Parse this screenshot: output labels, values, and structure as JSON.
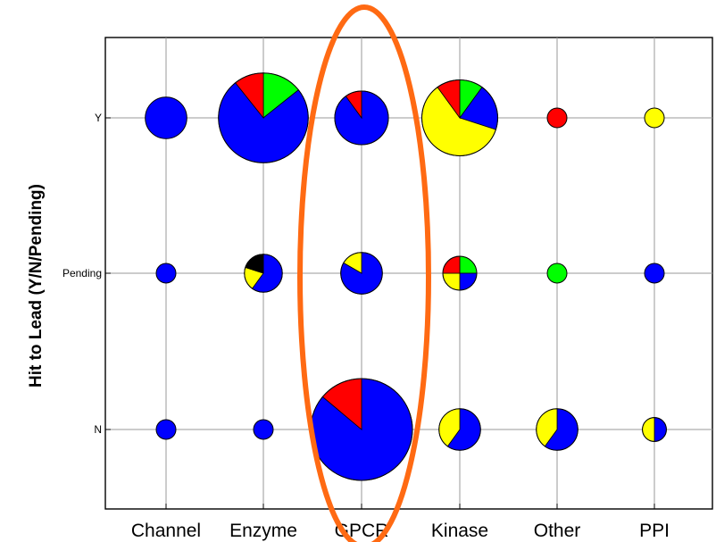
{
  "chart_data": {
    "type": "pie-grid",
    "ylabel": "Hit to Lead (Y/N/Pending)",
    "xlabel": "",
    "categories": [
      "Channel",
      "Enzyme",
      "GPCR",
      "Kinase",
      "Other",
      "PPI"
    ],
    "rows": [
      "Y",
      "Pending",
      "N"
    ],
    "grid": true,
    "series": [
      {
        "name": "blue",
        "color": "#0000ff"
      },
      {
        "name": "yellow",
        "color": "#ffff00"
      },
      {
        "name": "red",
        "color": "#ff0000"
      },
      {
        "name": "green",
        "color": "#00ff00"
      },
      {
        "name": "black",
        "color": "#000000"
      }
    ],
    "cells": [
      {
        "category": "Channel",
        "row": "Y",
        "total": 6,
        "slices": [
          {
            "color": "#0000ff",
            "value": 6
          }
        ]
      },
      {
        "category": "Enzyme",
        "row": "Y",
        "total": 28,
        "slices": [
          {
            "color": "#00ff00",
            "value": 4
          },
          {
            "color": "#0000ff",
            "value": 21
          },
          {
            "color": "#ff0000",
            "value": 3
          }
        ]
      },
      {
        "category": "GPCR",
        "row": "Y",
        "total": 10,
        "slices": [
          {
            "color": "#0000ff",
            "value": 9
          },
          {
            "color": "#ff0000",
            "value": 1
          }
        ]
      },
      {
        "category": "Kinase",
        "row": "Y",
        "total": 20,
        "slices": [
          {
            "color": "#00ff00",
            "value": 2
          },
          {
            "color": "#0000ff",
            "value": 4
          },
          {
            "color": "#ffff00",
            "value": 12
          },
          {
            "color": "#ff0000",
            "value": 2
          }
        ]
      },
      {
        "category": "Other",
        "row": "Y",
        "total": 1,
        "slices": [
          {
            "color": "#ff0000",
            "value": 1
          }
        ]
      },
      {
        "category": "PPI",
        "row": "Y",
        "total": 1,
        "slices": [
          {
            "color": "#ffff00",
            "value": 1
          }
        ]
      },
      {
        "category": "Channel",
        "row": "Pending",
        "total": 1,
        "slices": [
          {
            "color": "#0000ff",
            "value": 1
          }
        ]
      },
      {
        "category": "Enzyme",
        "row": "Pending",
        "total": 5,
        "slices": [
          {
            "color": "#0000ff",
            "value": 3
          },
          {
            "color": "#ffff00",
            "value": 1
          },
          {
            "color": "#000000",
            "value": 1
          }
        ]
      },
      {
        "category": "GPCR",
        "row": "Pending",
        "total": 6,
        "slices": [
          {
            "color": "#0000ff",
            "value": 5
          },
          {
            "color": "#ffff00",
            "value": 1
          }
        ]
      },
      {
        "category": "Kinase",
        "row": "Pending",
        "total": 4,
        "slices": [
          {
            "color": "#00ff00",
            "value": 1
          },
          {
            "color": "#0000ff",
            "value": 1
          },
          {
            "color": "#ffff00",
            "value": 1
          },
          {
            "color": "#ff0000",
            "value": 1
          }
        ]
      },
      {
        "category": "Other",
        "row": "Pending",
        "total": 1,
        "slices": [
          {
            "color": "#00ff00",
            "value": 1
          }
        ]
      },
      {
        "category": "PPI",
        "row": "Pending",
        "total": 1,
        "slices": [
          {
            "color": "#0000ff",
            "value": 1
          }
        ]
      },
      {
        "category": "Channel",
        "row": "N",
        "total": 1,
        "slices": [
          {
            "color": "#0000ff",
            "value": 1
          }
        ]
      },
      {
        "category": "Enzyme",
        "row": "N",
        "total": 1,
        "slices": [
          {
            "color": "#0000ff",
            "value": 1
          }
        ]
      },
      {
        "category": "GPCR",
        "row": "N",
        "total": 36,
        "slices": [
          {
            "color": "#0000ff",
            "value": 31
          },
          {
            "color": "#ff0000",
            "value": 5
          }
        ]
      },
      {
        "category": "Kinase",
        "row": "N",
        "total": 6,
        "slices": [
          {
            "color": "#0000ff",
            "value": 3.6
          },
          {
            "color": "#ffff00",
            "value": 2.4
          }
        ]
      },
      {
        "category": "Other",
        "row": "N",
        "total": 6,
        "slices": [
          {
            "color": "#0000ff",
            "value": 3.6
          },
          {
            "color": "#ffff00",
            "value": 2.4
          }
        ]
      },
      {
        "category": "PPI",
        "row": "N",
        "total": 2,
        "slices": [
          {
            "color": "#0000ff",
            "value": 1
          },
          {
            "color": "#ffff00",
            "value": 1
          }
        ]
      }
    ],
    "annotations": [
      {
        "type": "ellipse",
        "around_category": "GPCR",
        "color": "#ff6a13"
      }
    ]
  }
}
